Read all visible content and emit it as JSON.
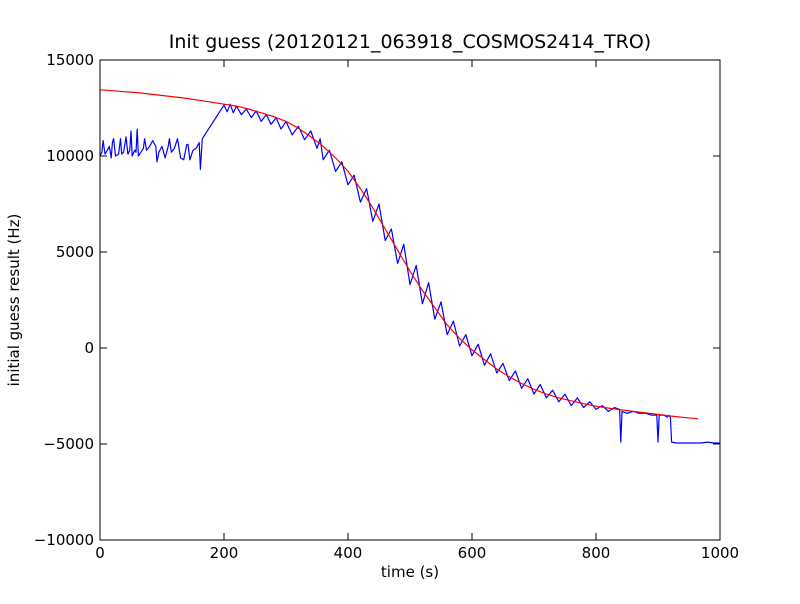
{
  "chart_data": {
    "type": "line",
    "title": "Init guess (20120121_063918_COSMOS2414_TRO)",
    "xlabel": "time (s)",
    "ylabel": "initial guess result (Hz)",
    "xlim": [
      0,
      1000
    ],
    "ylim": [
      -10000,
      15000
    ],
    "xticks": [
      0,
      200,
      400,
      600,
      800,
      1000
    ],
    "yticks": [
      -10000,
      -5000,
      0,
      5000,
      10000,
      15000
    ],
    "xtick_labels": [
      "0",
      "200",
      "400",
      "600",
      "800",
      "1000"
    ],
    "ytick_labels": [
      "−10000",
      "−5000",
      "0",
      "5000",
      "10000",
      "15000"
    ],
    "grid": false,
    "legend": "none",
    "series": [
      {
        "color": "#0000ff",
        "x": [
          0,
          3,
          5,
          8,
          12,
          15,
          18,
          20,
          22,
          25,
          30,
          33,
          35,
          38,
          42,
          45,
          48,
          50,
          52,
          56,
          58,
          60,
          62,
          66,
          70,
          72,
          75,
          80,
          85,
          90,
          92,
          95,
          100,
          105,
          110,
          112,
          115,
          120,
          125,
          130,
          135,
          140,
          142,
          145,
          150,
          155,
          160,
          162,
          165,
          170,
          175,
          180,
          185,
          190,
          195,
          200,
          205,
          210,
          215,
          220,
          228,
          236,
          244,
          252,
          260,
          268,
          276,
          284,
          292,
          300,
          310,
          320,
          330,
          340,
          350,
          355,
          360,
          370,
          380,
          390,
          400,
          410,
          420,
          430,
          440,
          450,
          460,
          470,
          480,
          490,
          500,
          510,
          520,
          530,
          540,
          550,
          560,
          570,
          580,
          590,
          600,
          610,
          620,
          630,
          640,
          650,
          660,
          670,
          680,
          690,
          700,
          710,
          720,
          730,
          740,
          750,
          760,
          770,
          780,
          790,
          800,
          810,
          820,
          830,
          838,
          840,
          842,
          850,
          860,
          870,
          880,
          890,
          898,
          900,
          902,
          910,
          915,
          918,
          920,
          922,
          930,
          940,
          950,
          960,
          970,
          980,
          990,
          1000
        ],
        "y": [
          10000,
          10200,
          10800,
          10100,
          10300,
          10500,
          9900,
          10700,
          10900,
          10000,
          10100,
          10900,
          10100,
          10200,
          11000,
          10100,
          10300,
          11300,
          10000,
          10300,
          10200,
          11400,
          10000,
          10200,
          10400,
          10900,
          10300,
          10500,
          10800,
          10500,
          9700,
          10200,
          10500,
          9900,
          10500,
          10900,
          10200,
          10400,
          10900,
          9900,
          9800,
          10600,
          10600,
          9800,
          10300,
          10400,
          10700,
          9300,
          10900,
          11150,
          11400,
          11650,
          11900,
          12150,
          12400,
          12650,
          12300,
          12700,
          12250,
          12600,
          12150,
          12450,
          12000,
          12350,
          11800,
          12150,
          11650,
          12000,
          11400,
          11800,
          11100,
          11550,
          10850,
          11300,
          10400,
          10900,
          9800,
          10300,
          9200,
          9700,
          8500,
          9000,
          7600,
          8300,
          6600,
          7500,
          5600,
          6200,
          4400,
          5400,
          3300,
          4300,
          2300,
          3400,
          1500,
          2400,
          700,
          1400,
          100,
          700,
          -400,
          200,
          -900,
          -300,
          -1300,
          -800,
          -1700,
          -1200,
          -2100,
          -1600,
          -2400,
          -1900,
          -2600,
          -2200,
          -2800,
          -2400,
          -3000,
          -2600,
          -3100,
          -2800,
          -3200,
          -3000,
          -3300,
          -3100,
          -3200,
          -4900,
          -3300,
          -3400,
          -3300,
          -3400,
          -3400,
          -3500,
          -3500,
          -4900,
          -3500,
          -3500,
          -3600,
          -3500,
          -3600,
          -4900,
          -4950,
          -4950,
          -4950,
          -4950,
          -4950,
          -4900,
          -4950,
          -4950
        ]
      },
      {
        "color": "#ff0000",
        "x": [
          0,
          20,
          40,
          60,
          80,
          100,
          120,
          140,
          160,
          180,
          200,
          220,
          240,
          260,
          280,
          300,
          320,
          340,
          360,
          380,
          400,
          420,
          440,
          460,
          480,
          500,
          520,
          540,
          560,
          580,
          600,
          620,
          640,
          660,
          680,
          700,
          720,
          740,
          760,
          780,
          800,
          820,
          840,
          860,
          880,
          900,
          920,
          940,
          965
        ],
        "y": [
          13450,
          13400,
          13350,
          13300,
          13230,
          13150,
          13080,
          13000,
          12900,
          12800,
          12700,
          12600,
          12450,
          12250,
          12050,
          11800,
          11450,
          11000,
          10500,
          9900,
          9200,
          8300,
          7300,
          6200,
          5100,
          4000,
          3000,
          2100,
          1200,
          500,
          -100,
          -600,
          -1100,
          -1500,
          -1850,
          -2150,
          -2400,
          -2600,
          -2750,
          -2900,
          -3030,
          -3130,
          -3220,
          -3300,
          -3380,
          -3460,
          -3540,
          -3610,
          -3690
        ]
      }
    ]
  }
}
